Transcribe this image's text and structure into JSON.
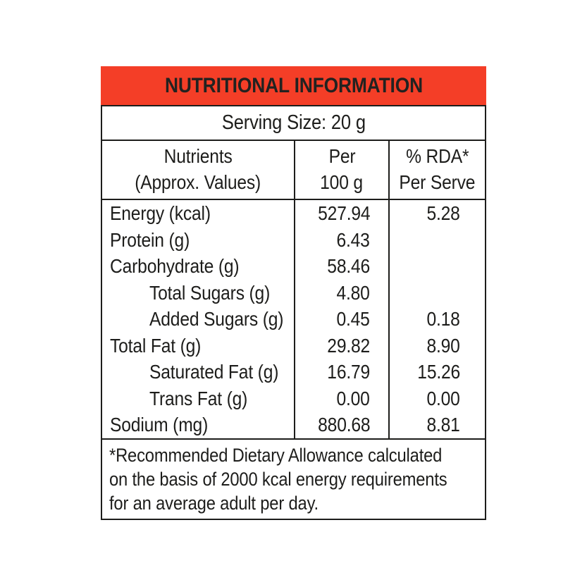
{
  "header": {
    "title": "NUTRITIONAL INFORMATION",
    "band_color": "#f43e27",
    "title_color": "#222220"
  },
  "serving": {
    "label": "Serving Size: 20 g"
  },
  "columns": {
    "nutrients_line1": "Nutrients",
    "nutrients_line2": "(Approx. Values)",
    "per_line1": "Per",
    "per_line2": "100 g",
    "rda_line1": "% RDA*",
    "rda_line2": "Per Serve"
  },
  "rows": [
    {
      "label": "Energy (kcal)",
      "indent": false,
      "per100": "527.94",
      "rda": "5.28"
    },
    {
      "label": "Protein (g)",
      "indent": false,
      "per100": "6.43",
      "rda": ""
    },
    {
      "label": "Carbohydrate (g)",
      "indent": false,
      "per100": "58.46",
      "rda": ""
    },
    {
      "label": "Total Sugars (g)",
      "indent": true,
      "per100": "4.80",
      "rda": ""
    },
    {
      "label": "Added Sugars (g)",
      "indent": true,
      "per100": "0.45",
      "rda": "0.18"
    },
    {
      "label": "Total Fat (g)",
      "indent": false,
      "per100": "29.82",
      "rda": "8.90"
    },
    {
      "label": "Saturated Fat (g)",
      "indent": true,
      "per100": "16.79",
      "rda": "15.26"
    },
    {
      "label": "Trans Fat (g)",
      "indent": true,
      "per100": "0.00",
      "rda": "0.00"
    },
    {
      "label": "Sodium (mg)",
      "indent": false,
      "per100": "880.68",
      "rda": "8.81"
    }
  ],
  "footnote": {
    "lines": [
      "*Recommended Dietary Allowance calculated",
      "on the basis of 2000 kcal energy requirements",
      "for an average adult per day."
    ]
  }
}
